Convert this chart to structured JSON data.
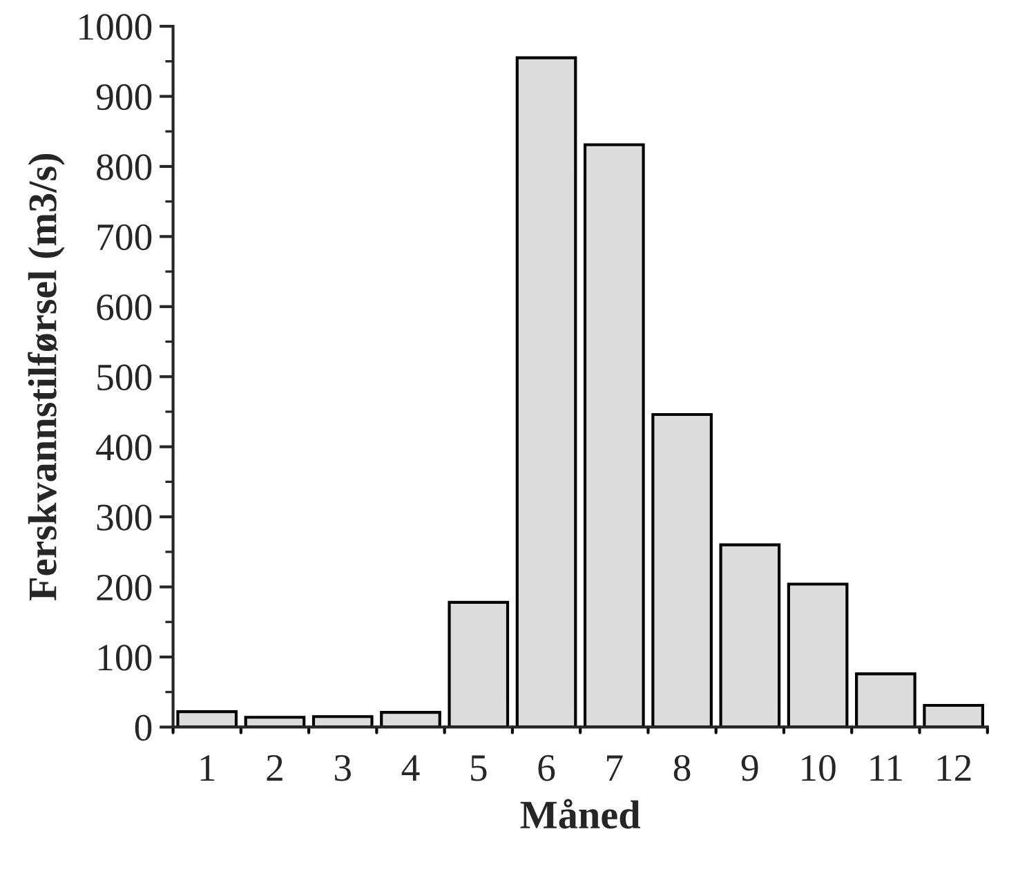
{
  "chart_data": {
    "type": "bar",
    "xlabel": "Måned",
    "ylabel": "Ferskvannstilførsel (m3/s)",
    "categories": [
      "1",
      "2",
      "3",
      "4",
      "5",
      "6",
      "7",
      "8",
      "9",
      "10",
      "11",
      "12"
    ],
    "values": [
      22,
      14,
      15,
      21,
      178,
      955,
      831,
      446,
      260,
      204,
      76,
      31
    ],
    "color": "#dcdcdc",
    "ylim": [
      0,
      1000
    ],
    "yticks": [
      0,
      100,
      200,
      300,
      400,
      500,
      600,
      700,
      800,
      900,
      1000
    ],
    "grid": false
  }
}
